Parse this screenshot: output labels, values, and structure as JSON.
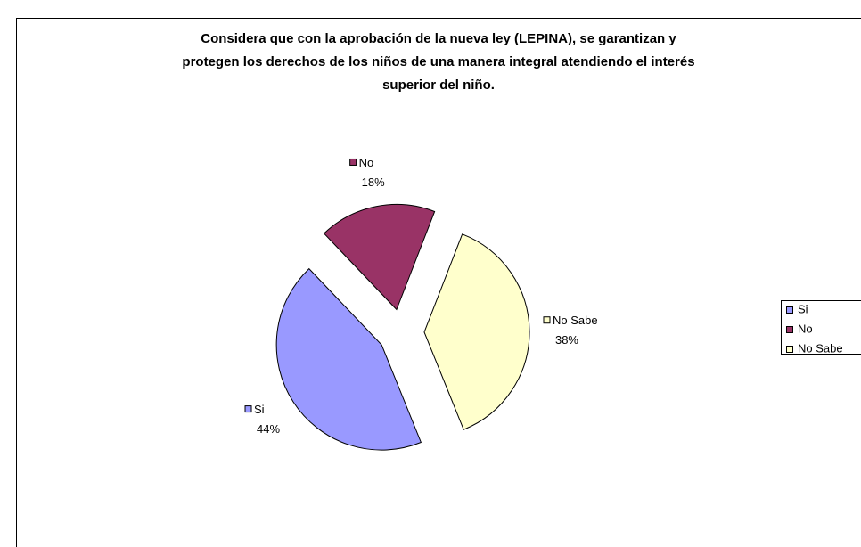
{
  "chart_data": {
    "type": "pie",
    "title": [
      "Considera que con la aprobación de la nueva ley (LEPINA), se garantizan y",
      "protegen los derechos de los niños de una manera integral atendiendo el interés",
      "superior del niño."
    ],
    "categories": [
      "Si",
      "No",
      "No Sabe"
    ],
    "values": [
      44,
      18,
      38
    ],
    "value_labels": [
      "44%",
      "18%",
      "38%"
    ],
    "colors": [
      "#9999ff",
      "#993366",
      "#ffffcc"
    ],
    "legend": "right"
  }
}
